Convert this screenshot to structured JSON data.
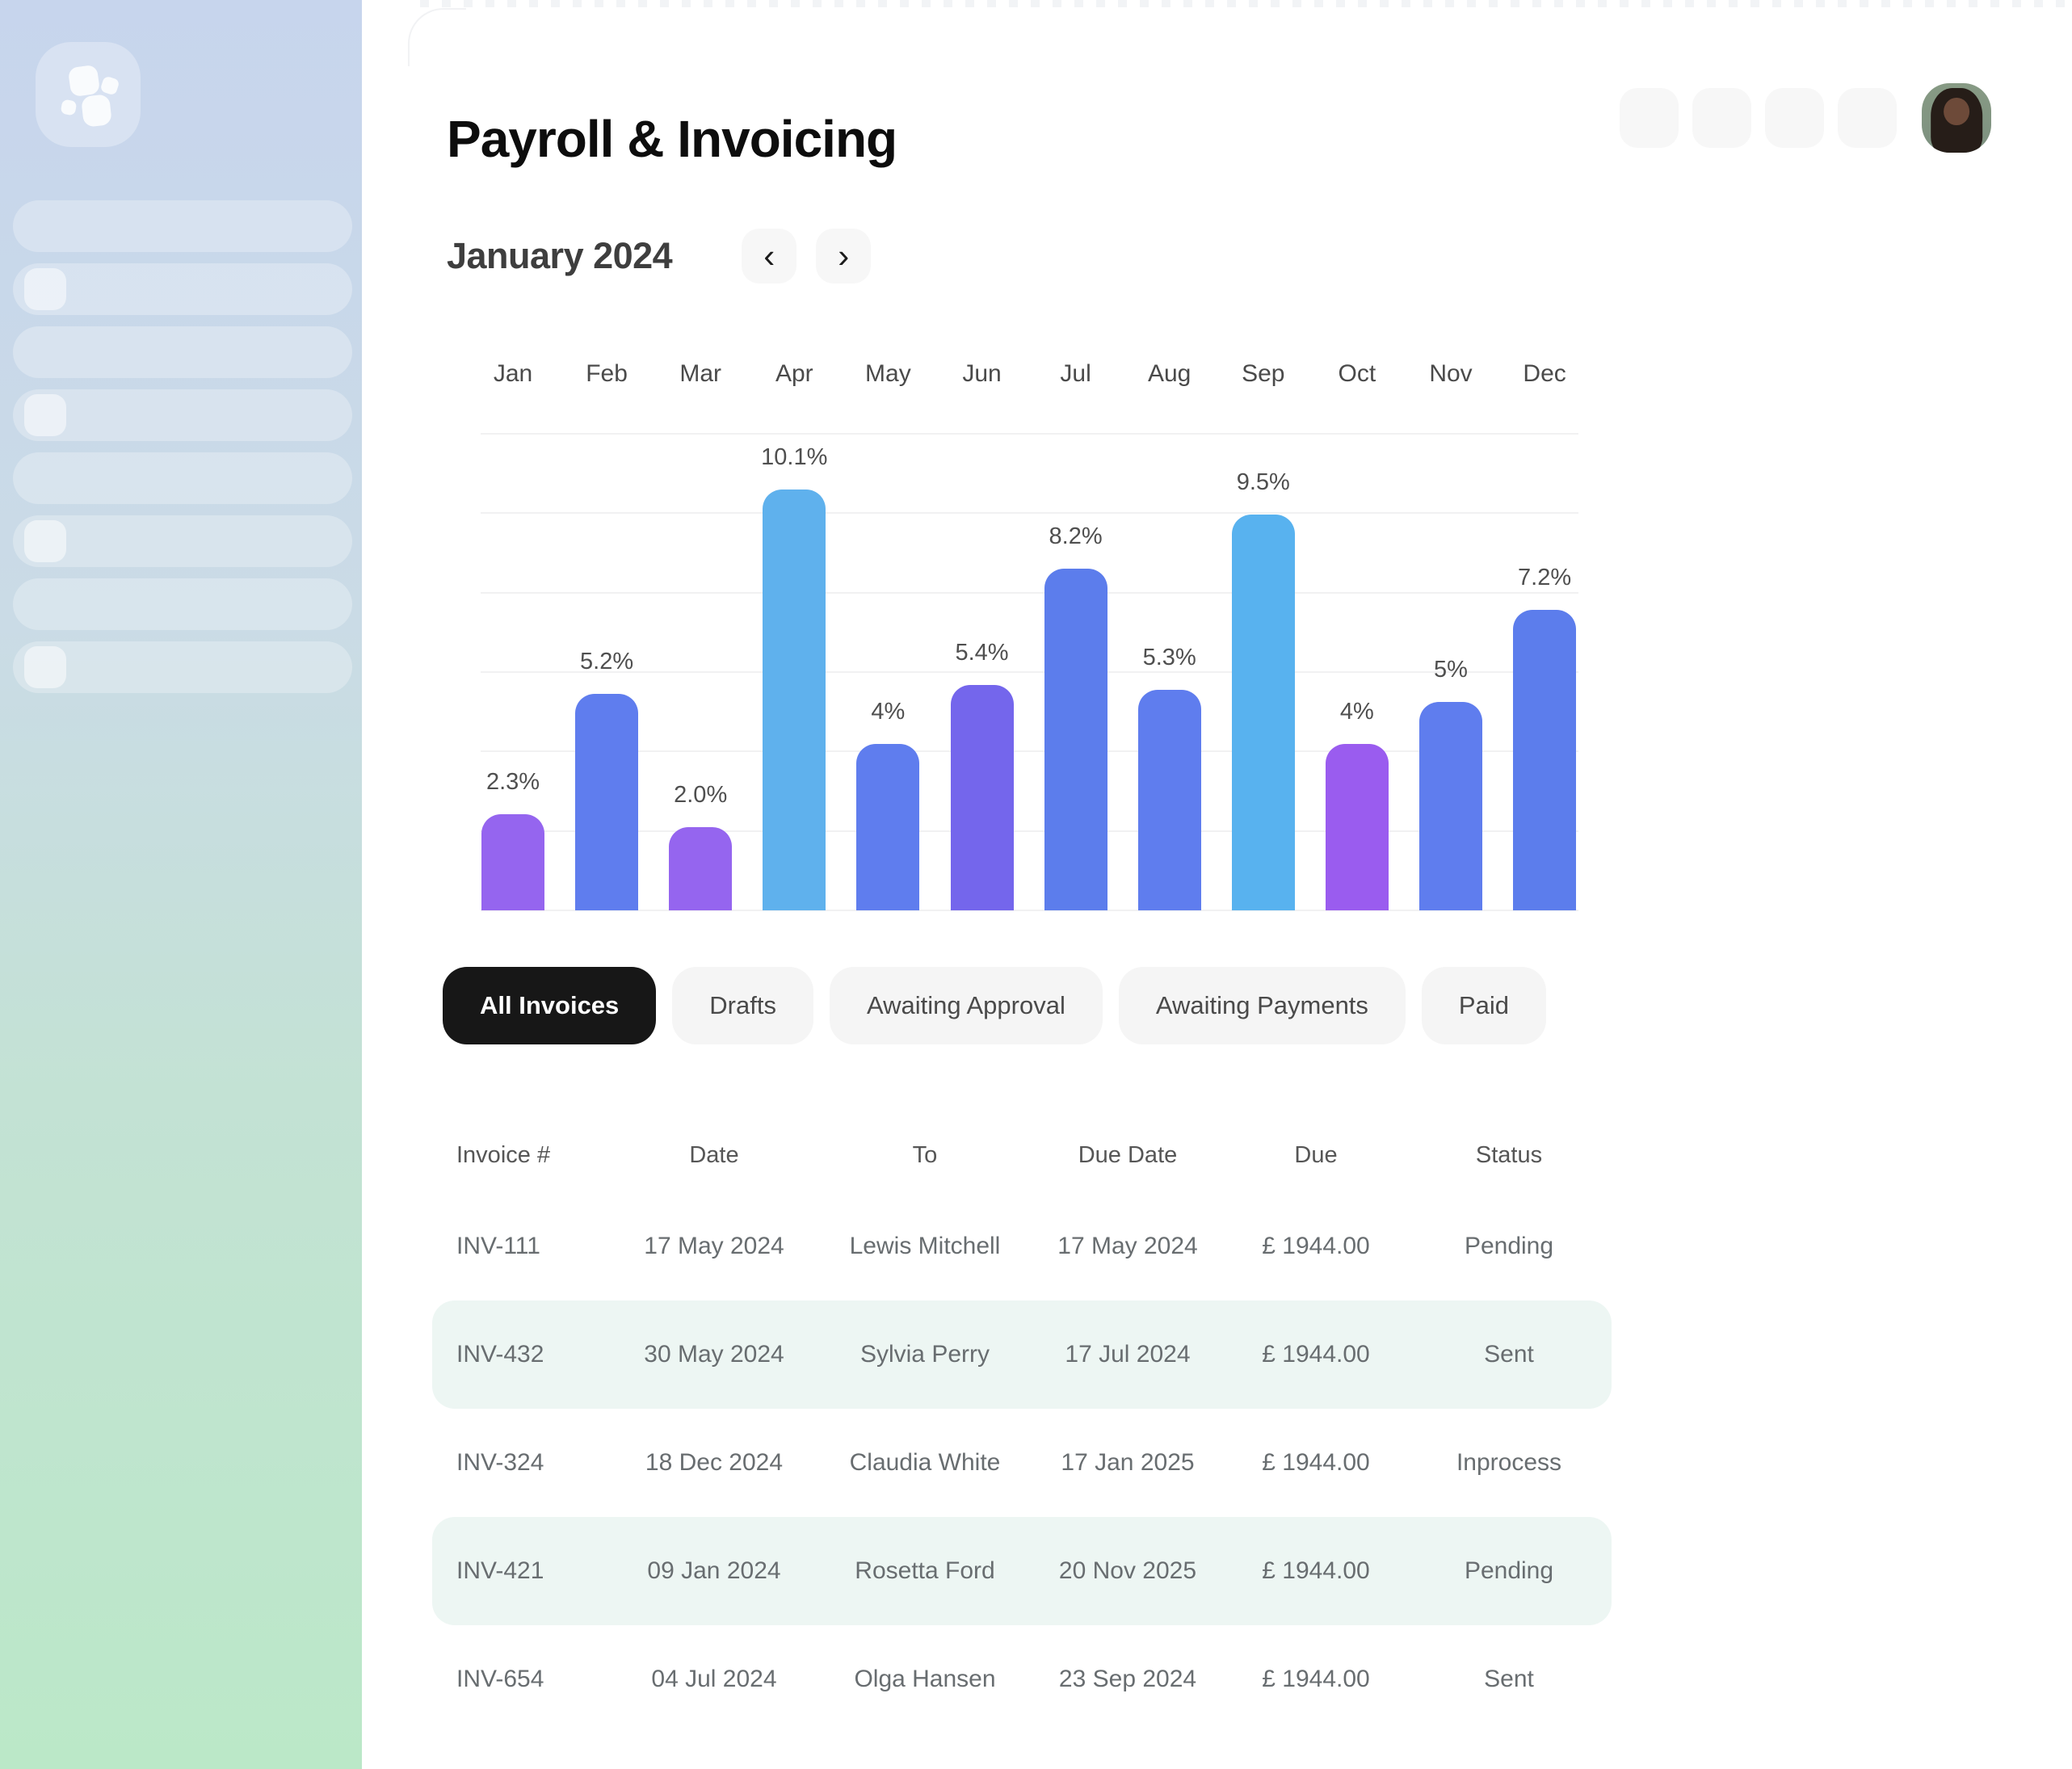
{
  "app": {
    "title": "Payroll & Invoicing"
  },
  "header_actions": {
    "placeholder_count": 4
  },
  "period": {
    "label": "January 2024",
    "prev_icon": "‹",
    "next_icon": "›"
  },
  "chart_data": {
    "type": "bar",
    "title": "",
    "xlabel": "",
    "ylabel": "",
    "categories": [
      "Jan",
      "Feb",
      "Mar",
      "Apr",
      "May",
      "Jun",
      "Jul",
      "Aug",
      "Sep",
      "Oct",
      "Nov",
      "Dec"
    ],
    "values": [
      2.3,
      5.2,
      2.0,
      10.1,
      4,
      5.4,
      8.2,
      5.3,
      9.5,
      4,
      5,
      7.2
    ],
    "value_labels": [
      "2.3%",
      "5.2%",
      "2.0%",
      "10.1%",
      "4%",
      "5.4%",
      "8.2%",
      "5.3%",
      "9.5%",
      "4%",
      "5%",
      "7.2%"
    ],
    "bar_colors": [
      "#9565ef",
      "#5f7dee",
      "#9565ef",
      "#5fb1ed",
      "#5f7dee",
      "#7466ec",
      "#5c7dec",
      "#5f7dee",
      "#58b2ef",
      "#9a5cef",
      "#5f7dee",
      "#5c7dec"
    ],
    "ylim": [
      0,
      11.5
    ],
    "grid": true,
    "gridline_count": 7,
    "legend": "none"
  },
  "filters": [
    {
      "label": "All Invoices",
      "active": true
    },
    {
      "label": "Drafts",
      "active": false
    },
    {
      "label": "Awaiting Approval",
      "active": false
    },
    {
      "label": "Awaiting Payments",
      "active": false
    },
    {
      "label": "Paid",
      "active": false
    }
  ],
  "invoice_table": {
    "columns": [
      "Invoice #",
      "Date",
      "To",
      "Due Date",
      "Due",
      "Status"
    ],
    "rows": [
      {
        "invoice": "INV-111",
        "date": "17 May 2024",
        "to": "Lewis Mitchell",
        "due_date": "17 May 2024",
        "due": "£ 1944.00",
        "status": "Pending",
        "highlighted": false
      },
      {
        "invoice": "INV-432",
        "date": "30 May 2024",
        "to": "Sylvia Perry",
        "due_date": "17 Jul 2024",
        "due": "£ 1944.00",
        "status": "Sent",
        "highlighted": true
      },
      {
        "invoice": "INV-324",
        "date": "18 Dec 2024",
        "to": "Claudia White",
        "due_date": "17 Jan 2025",
        "due": "£ 1944.00",
        "status": "Inprocess",
        "highlighted": false
      },
      {
        "invoice": "INV-421",
        "date": "09 Jan 2024",
        "to": "Rosetta Ford",
        "due_date": "20 Nov 2025",
        "due": "£ 1944.00",
        "status": "Pending",
        "highlighted": true
      },
      {
        "invoice": "INV-654",
        "date": "04 Jul 2024",
        "to": "Olga Hansen",
        "due_date": "23 Sep 2024",
        "due": "£ 1944.00",
        "status": "Sent",
        "highlighted": false
      }
    ]
  },
  "colors": {
    "sidebar_gradient_top": "#c7d5ed",
    "sidebar_gradient_bottom": "#bbe8c8",
    "active_pill_bg": "#171717",
    "pill_bg": "#f5f5f5",
    "row_highlight_bg": "#edf6f3",
    "accent_blue": "#5f7dee",
    "accent_sky": "#5fb1ed",
    "accent_purple": "#9565ef"
  }
}
